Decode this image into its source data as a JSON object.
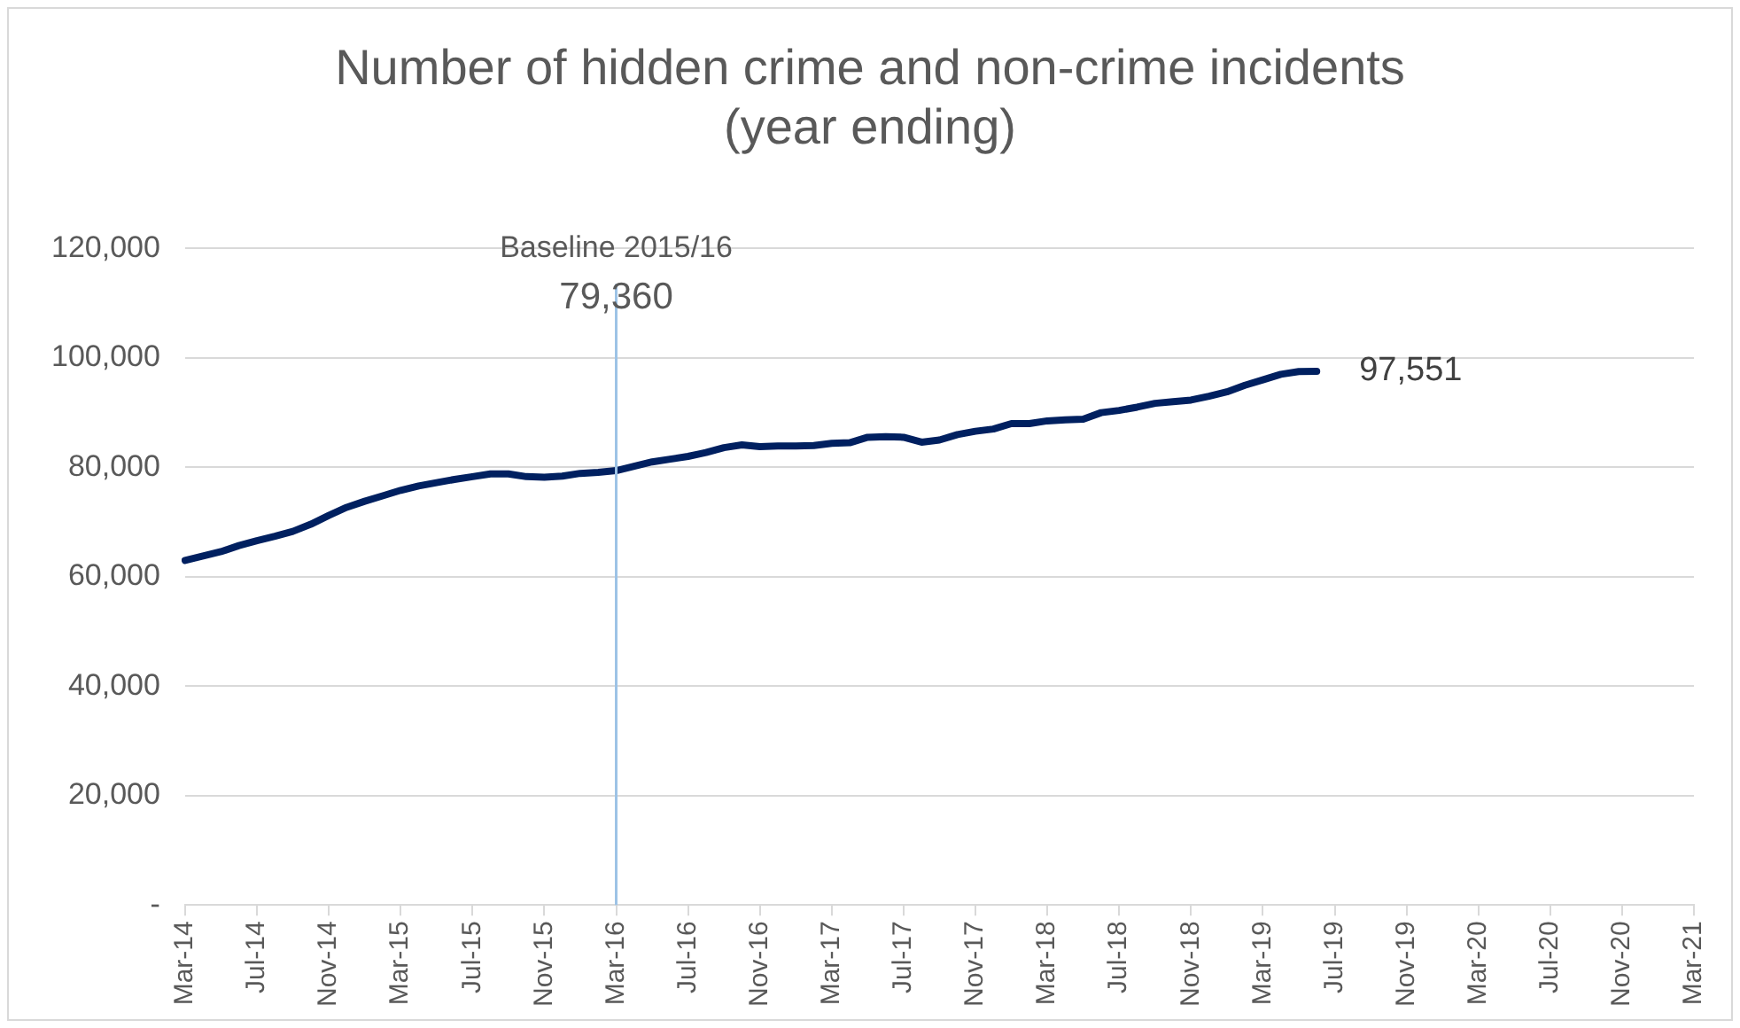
{
  "chart_data": {
    "type": "line",
    "title": "Number of hidden crime and non-crime incidents\n(year ending)",
    "categories": [
      "Mar-14",
      null,
      null,
      null,
      "Jul-14",
      null,
      null,
      null,
      "Nov-14",
      null,
      null,
      null,
      "Mar-15",
      null,
      null,
      null,
      "Jul-15",
      null,
      null,
      null,
      "Nov-15",
      null,
      null,
      null,
      "Mar-16",
      null,
      null,
      null,
      "Jul-16",
      null,
      null,
      null,
      "Nov-16",
      null,
      null,
      null,
      "Mar-17",
      null,
      null,
      null,
      "Jul-17",
      null,
      null,
      null,
      "Nov-17",
      null,
      null,
      null,
      "Mar-18",
      null,
      null,
      null,
      "Jul-18",
      null,
      null,
      null,
      "Nov-18",
      null,
      null,
      null,
      "Mar-19",
      null,
      null,
      null,
      "Jul-19",
      null,
      null,
      null,
      "Nov-19",
      null,
      null,
      null,
      "Mar-20",
      null,
      null,
      null,
      "Jul-20",
      null,
      null,
      null,
      "Nov-20",
      null,
      null,
      null,
      "Mar-21"
    ],
    "series": [
      {
        "color": "#002060",
        "values": [
          63000,
          63800,
          64600,
          65700,
          66600,
          67400,
          68300,
          69600,
          71200,
          72700,
          73800,
          74800,
          75800,
          76600,
          77200,
          77800,
          78300,
          78800,
          78800,
          78300,
          78200,
          78400,
          78900,
          79100,
          79400,
          80200,
          81000,
          81500,
          82000,
          82700,
          83600,
          84100,
          83800,
          83900,
          83900,
          84000,
          84400,
          84500,
          85500,
          85600,
          85500,
          84600,
          85000,
          86000,
          86600,
          87000,
          88000,
          88000,
          88500,
          88700,
          88800,
          90000,
          90400,
          91000,
          91700,
          92000,
          92300,
          93000,
          93800,
          95000,
          96000,
          97000,
          97500,
          97551,
          null,
          null,
          null,
          null,
          null,
          null,
          null,
          null,
          null,
          null,
          null,
          null,
          null,
          null,
          null,
          null,
          null,
          null,
          null,
          null,
          null
        ],
        "value_labels": [
          null,
          null,
          null,
          null,
          null,
          null,
          null,
          null,
          null,
          null,
          null,
          null,
          null,
          null,
          null,
          null,
          null,
          null,
          null,
          null,
          null,
          null,
          null,
          null,
          null,
          null,
          null,
          null,
          null,
          null,
          null,
          null,
          null,
          null,
          null,
          null,
          null,
          null,
          null,
          null,
          null,
          null,
          null,
          null,
          null,
          null,
          null,
          null,
          null,
          null,
          null,
          null,
          null,
          null,
          null,
          null,
          null,
          null,
          null,
          null,
          null,
          null,
          null,
          "97,551",
          null,
          null,
          null,
          null,
          null,
          null,
          null,
          null,
          null,
          null,
          null,
          null,
          null,
          null,
          null,
          null,
          null,
          null,
          null,
          null,
          null
        ]
      }
    ],
    "ylim": [
      0,
      120000
    ],
    "yticks": [
      {
        "value": 0,
        "label": "-"
      },
      {
        "value": 20000,
        "label": "20,000"
      },
      {
        "value": 40000,
        "label": "40,000"
      },
      {
        "value": 60000,
        "label": "60,000"
      },
      {
        "value": 80000,
        "label": "80,000"
      },
      {
        "value": 100000,
        "label": "100,000"
      },
      {
        "value": 120000,
        "label": "120,000"
      }
    ],
    "ref_lines": [
      {
        "axis": "x",
        "value": "Mar-16",
        "label": "Baseline 2015/16\n79,360",
        "color": "#9dc3e6"
      }
    ],
    "grid": "y",
    "legend": false,
    "marker": "none",
    "line_style": "solid"
  }
}
